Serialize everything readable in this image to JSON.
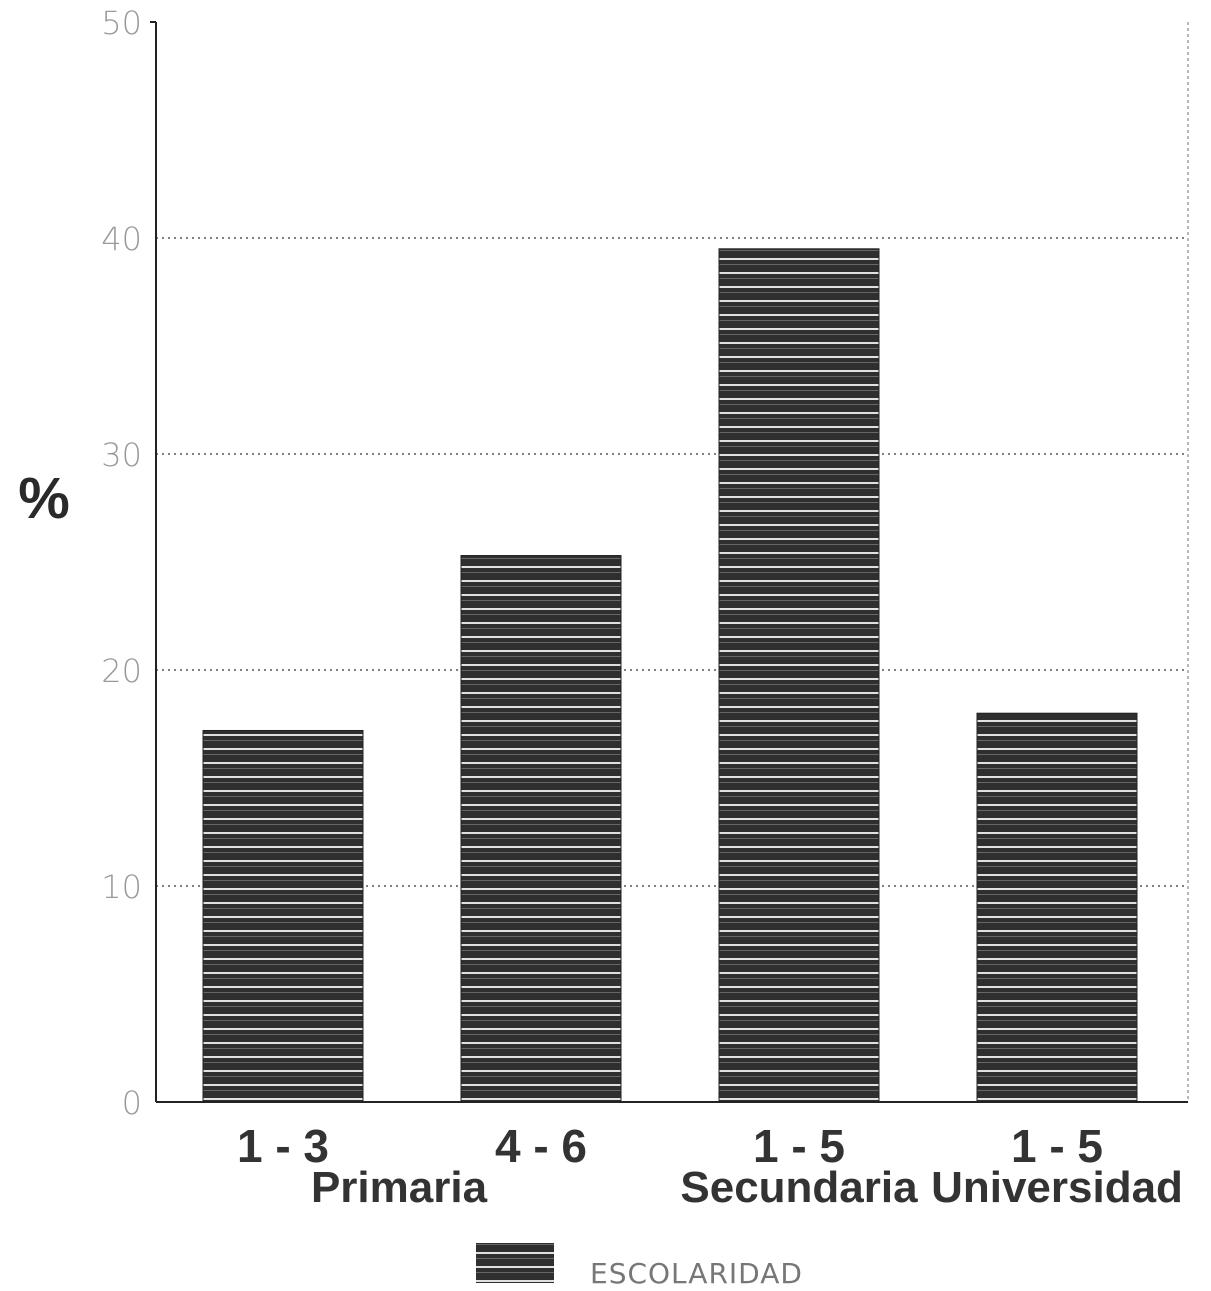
{
  "chart_data": {
    "type": "bar",
    "categories": [
      {
        "line1": "1-3",
        "line2": "Primaria"
      },
      {
        "line1": "4-6",
        "line2": ""
      },
      {
        "line1": "1-5",
        "line2": "Secundaria"
      },
      {
        "line1": "1-5",
        "line2": "Universidad"
      }
    ],
    "series": [
      {
        "name": "ESCOLARIDAD",
        "values": [
          17.2,
          25.3,
          39.5,
          18.0
        ]
      }
    ],
    "title": "",
    "xlabel": "",
    "ylabel": "%",
    "ylim": [
      0,
      50
    ],
    "yticks": [
      "0",
      "10",
      "20",
      "30",
      "40",
      "50"
    ],
    "grid": "horizontal dotted",
    "legend_position": "bottom-center",
    "colors": {
      "bar": "#2f2f2f",
      "bar_stripe": "#ffffff",
      "grid": "#555555",
      "axis": "#222222"
    }
  }
}
